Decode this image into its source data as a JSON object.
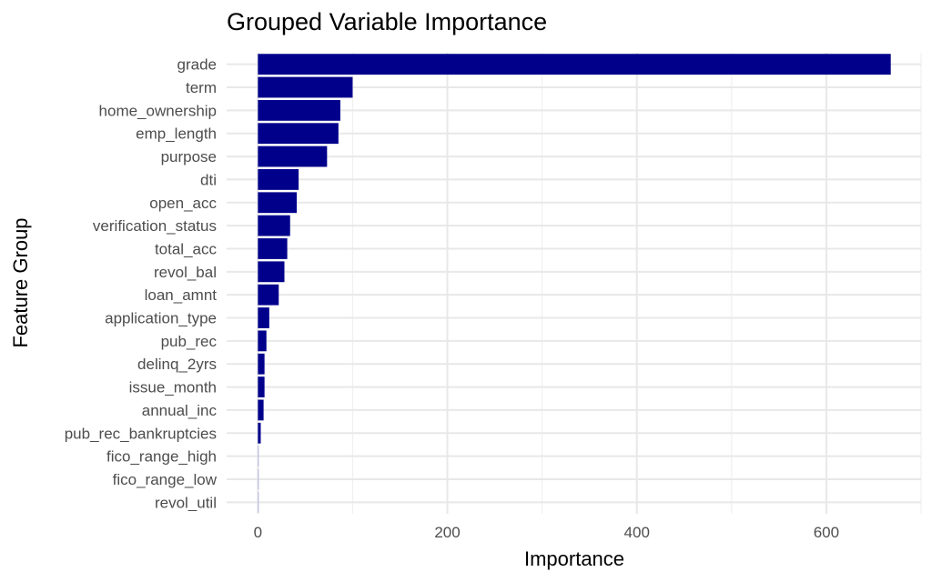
{
  "chart_data": {
    "type": "bar",
    "orientation": "horizontal",
    "title": "Grouped Variable Importance",
    "xlabel": "Importance",
    "ylabel": "Feature Group",
    "categories": [
      "grade",
      "term",
      "home_ownership",
      "emp_length",
      "purpose",
      "dti",
      "open_acc",
      "verification_status",
      "total_acc",
      "revol_bal",
      "loan_amnt",
      "application_type",
      "pub_rec",
      "delinq_2yrs",
      "issue_month",
      "annual_inc",
      "pub_rec_bankruptcies",
      "fico_range_high",
      "fico_range_low",
      "revol_util"
    ],
    "values": [
      668,
      100,
      87,
      85,
      73,
      43,
      41,
      34,
      31,
      28,
      22,
      12,
      9,
      7,
      7,
      6,
      3,
      0.4,
      0.3,
      0.3
    ],
    "bar_colors": [
      "#00008B",
      "#00008B",
      "#00008B",
      "#00008B",
      "#00008B",
      "#00008B",
      "#00008B",
      "#00008B",
      "#00008B",
      "#00008B",
      "#00008B",
      "#00008B",
      "#00008B",
      "#00008B",
      "#00008B",
      "#00008B",
      "#00008B",
      "#b3b3e0",
      "#b3b3e0",
      "#b3b3e0"
    ],
    "xlim": [
      -33,
      700
    ],
    "xticks": [
      0,
      200,
      400,
      600
    ],
    "xtick_labels": [
      "0",
      "200",
      "400",
      "600"
    ],
    "grid": true,
    "legend": "none"
  }
}
